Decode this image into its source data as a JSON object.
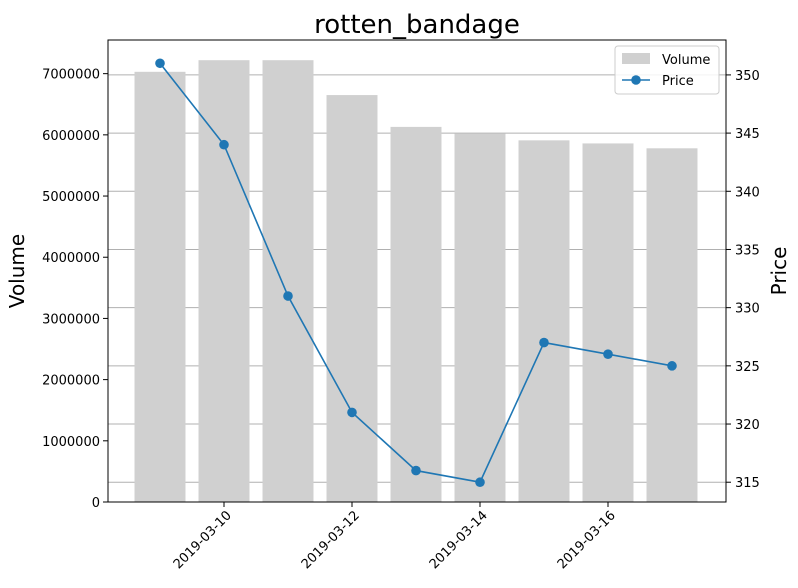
{
  "chart_data": {
    "type": "bar+line",
    "title": "rotten_bandage",
    "xlabel": "",
    "ylabel_left": "Volume",
    "ylabel_right": "Price",
    "dates": [
      "2019-03-09",
      "2019-03-10",
      "2019-03-11",
      "2019-03-12",
      "2019-03-13",
      "2019-03-14",
      "2019-03-15",
      "2019-03-16",
      "2019-03-17"
    ],
    "xticks": [
      "2019-03-10",
      "2019-03-12",
      "2019-03-14",
      "2019-03-16"
    ],
    "volume_ticks": [
      "0",
      "1000000",
      "2000000",
      "3000000",
      "4000000",
      "5000000",
      "6000000",
      "7000000"
    ],
    "price_ticks": [
      "315",
      "320",
      "325",
      "330",
      "335",
      "340",
      "345",
      "350"
    ],
    "ylim_left": [
      0,
      7550000
    ],
    "ylim_right": [
      313.3,
      353.0
    ],
    "grid": "horizontal, right axis",
    "legend_position": "top-right",
    "series": [
      {
        "name": "Volume",
        "type": "bar",
        "axis": "left",
        "color": "#d0d0d0",
        "values": [
          7030000,
          7220000,
          7220000,
          6650000,
          6130000,
          6020000,
          5910000,
          5860000,
          5780000
        ]
      },
      {
        "name": "Price",
        "type": "line",
        "axis": "right",
        "color": "#1f77b4",
        "marker": "circle",
        "values": [
          351,
          344,
          331,
          321,
          316,
          315,
          327,
          326,
          325
        ]
      }
    ]
  }
}
